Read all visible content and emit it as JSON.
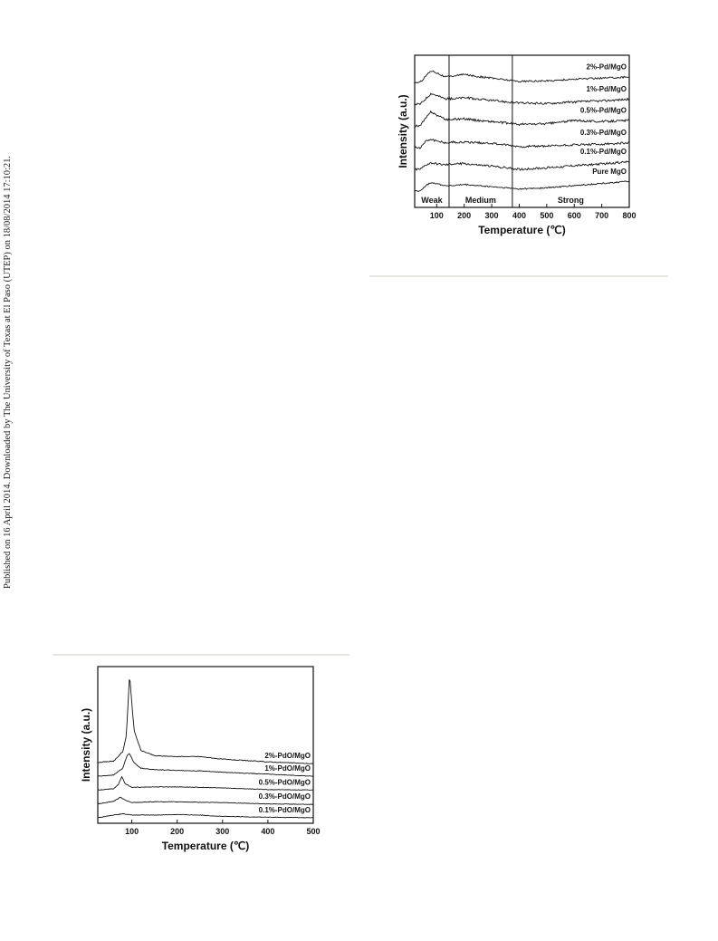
{
  "side_note": "Published on 16 April 2014. Downloaded by The University of Texas at El Paso (UTEP) on 18/08/2014 17:10:21.",
  "chart_data": [
    {
      "type": "line",
      "xlabel": "Temperature (℃)",
      "ylabel": "Intensity (a.u.)",
      "xlim": [
        20,
        800
      ],
      "xticks": [
        100,
        200,
        300,
        400,
        500,
        600,
        700,
        800
      ],
      "regions": [
        {
          "label": "Weak",
          "from": 20,
          "to": 145
        },
        {
          "label": "Medium",
          "from": 145,
          "to": 375
        },
        {
          "label": "Strong",
          "from": 375,
          "to": 800
        }
      ],
      "series": [
        {
          "name": "2%-Pd/MgO",
          "offset": 5,
          "noise": 0.04,
          "points": [
            [
              40,
              0.05
            ],
            [
              60,
              0.35
            ],
            [
              80,
              0.6
            ],
            [
              100,
              0.5
            ],
            [
              130,
              0.3
            ],
            [
              160,
              0.35
            ],
            [
              200,
              0.42
            ],
            [
              250,
              0.32
            ],
            [
              300,
              0.25
            ],
            [
              400,
              0.1
            ],
            [
              500,
              0.12
            ],
            [
              600,
              0.2
            ],
            [
              700,
              0.25
            ],
            [
              800,
              0.3
            ]
          ]
        },
        {
          "name": "1%-Pd/MgO",
          "offset": 4,
          "noise": 0.05,
          "points": [
            [
              40,
              0.05
            ],
            [
              60,
              0.3
            ],
            [
              80,
              0.55
            ],
            [
              100,
              0.45
            ],
            [
              130,
              0.3
            ],
            [
              160,
              0.3
            ],
            [
              200,
              0.35
            ],
            [
              250,
              0.28
            ],
            [
              300,
              0.22
            ],
            [
              400,
              0.1
            ],
            [
              500,
              0.08
            ],
            [
              600,
              0.15
            ],
            [
              700,
              0.2
            ],
            [
              800,
              0.28
            ]
          ]
        },
        {
          "name": "0.5%-Pd/MgO",
          "offset": 3,
          "noise": 0.05,
          "points": [
            [
              40,
              0.05
            ],
            [
              60,
              0.4
            ],
            [
              80,
              0.7
            ],
            [
              100,
              0.55
            ],
            [
              130,
              0.35
            ],
            [
              160,
              0.35
            ],
            [
              200,
              0.38
            ],
            [
              250,
              0.3
            ],
            [
              300,
              0.25
            ],
            [
              400,
              0.12
            ],
            [
              500,
              0.15
            ],
            [
              600,
              0.3
            ],
            [
              700,
              0.25
            ],
            [
              800,
              0.3
            ]
          ]
        },
        {
          "name": "0.3%-Pd/MgO",
          "offset": 2,
          "noise": 0.05,
          "points": [
            [
              40,
              0.05
            ],
            [
              60,
              0.35
            ],
            [
              80,
              0.45
            ],
            [
              100,
              0.35
            ],
            [
              130,
              0.28
            ],
            [
              160,
              0.3
            ],
            [
              200,
              0.3
            ],
            [
              250,
              0.28
            ],
            [
              300,
              0.25
            ],
            [
              400,
              0.1
            ],
            [
              500,
              0.12
            ],
            [
              600,
              0.18
            ],
            [
              700,
              0.2
            ],
            [
              800,
              0.28
            ]
          ]
        },
        {
          "name": "0.1%-Pd/MgO",
          "offset": 1,
          "noise": 0.05,
          "points": [
            [
              40,
              0.05
            ],
            [
              60,
              0.25
            ],
            [
              80,
              0.35
            ],
            [
              100,
              0.3
            ],
            [
              130,
              0.25
            ],
            [
              160,
              0.3
            ],
            [
              200,
              0.32
            ],
            [
              250,
              0.25
            ],
            [
              300,
              0.2
            ],
            [
              400,
              0.05
            ],
            [
              500,
              0.12
            ],
            [
              600,
              0.22
            ],
            [
              700,
              0.3
            ],
            [
              800,
              0.4
            ]
          ]
        },
        {
          "name": "Pure MgO",
          "offset": 0,
          "noise": 0.03,
          "points": [
            [
              40,
              0.05
            ],
            [
              60,
              0.3
            ],
            [
              80,
              0.45
            ],
            [
              100,
              0.4
            ],
            [
              130,
              0.3
            ],
            [
              160,
              0.3
            ],
            [
              200,
              0.35
            ],
            [
              250,
              0.3
            ],
            [
              300,
              0.25
            ],
            [
              400,
              0.15
            ],
            [
              500,
              0.2
            ],
            [
              600,
              0.3
            ],
            [
              700,
              0.4
            ],
            [
              800,
              0.5
            ]
          ]
        }
      ]
    },
    {
      "type": "line",
      "xlabel": "Temperature (℃)",
      "ylabel": "Intensity (a.u.)",
      "xlim": [
        25,
        500
      ],
      "xticks": [
        100,
        200,
        300,
        400,
        500
      ],
      "series": [
        {
          "name": "2%-PdO/MgO",
          "offset": 4,
          "noise": 0.02,
          "peak_height": 3.2,
          "points": [
            [
              25,
              0.0
            ],
            [
              60,
              0.05
            ],
            [
              80,
              0.4
            ],
            [
              88,
              1.0
            ],
            [
              95,
              3.3
            ],
            [
              105,
              1.2
            ],
            [
              120,
              0.45
            ],
            [
              150,
              0.25
            ],
            [
              200,
              0.22
            ],
            [
              250,
              0.22
            ],
            [
              300,
              0.12
            ],
            [
              400,
              0.02
            ],
            [
              500,
              -0.05
            ]
          ]
        },
        {
          "name": "1%-PdO/MgO",
          "offset": 3,
          "noise": 0.015,
          "points": [
            [
              25,
              0.0
            ],
            [
              60,
              0.05
            ],
            [
              80,
              0.3
            ],
            [
              90,
              0.8
            ],
            [
              95,
              0.85
            ],
            [
              105,
              0.5
            ],
            [
              120,
              0.3
            ],
            [
              150,
              0.25
            ],
            [
              200,
              0.22
            ],
            [
              250,
              0.2
            ],
            [
              300,
              0.15
            ],
            [
              400,
              0.08
            ],
            [
              500,
              0.0
            ]
          ]
        },
        {
          "name": "0.5%-PdO/MgO",
          "offset": 2,
          "noise": 0.015,
          "points": [
            [
              25,
              0.0
            ],
            [
              60,
              0.05
            ],
            [
              70,
              0.2
            ],
            [
              78,
              0.5
            ],
            [
              85,
              0.25
            ],
            [
              100,
              0.1
            ],
            [
              150,
              0.12
            ],
            [
              200,
              0.12
            ],
            [
              250,
              0.1
            ],
            [
              300,
              0.08
            ],
            [
              400,
              0.02
            ],
            [
              500,
              0.0
            ]
          ]
        },
        {
          "name": "0.3%-PdO/MgO",
          "offset": 1,
          "noise": 0.015,
          "points": [
            [
              25,
              0.0
            ],
            [
              60,
              0.1
            ],
            [
              75,
              0.25
            ],
            [
              85,
              0.15
            ],
            [
              100,
              0.05
            ],
            [
              150,
              0.08
            ],
            [
              200,
              0.08
            ],
            [
              250,
              0.06
            ],
            [
              300,
              0.05
            ],
            [
              400,
              0.0
            ],
            [
              500,
              -0.02
            ]
          ]
        },
        {
          "name": "0.1%-PdO/MgO",
          "offset": 0,
          "noise": 0.015,
          "points": [
            [
              25,
              0.0
            ],
            [
              60,
              0.1
            ],
            [
              80,
              0.15
            ],
            [
              100,
              0.1
            ],
            [
              150,
              0.1
            ],
            [
              200,
              0.12
            ],
            [
              250,
              0.1
            ],
            [
              300,
              0.05
            ],
            [
              400,
              0.02
            ],
            [
              500,
              0.0
            ]
          ]
        }
      ]
    }
  ]
}
